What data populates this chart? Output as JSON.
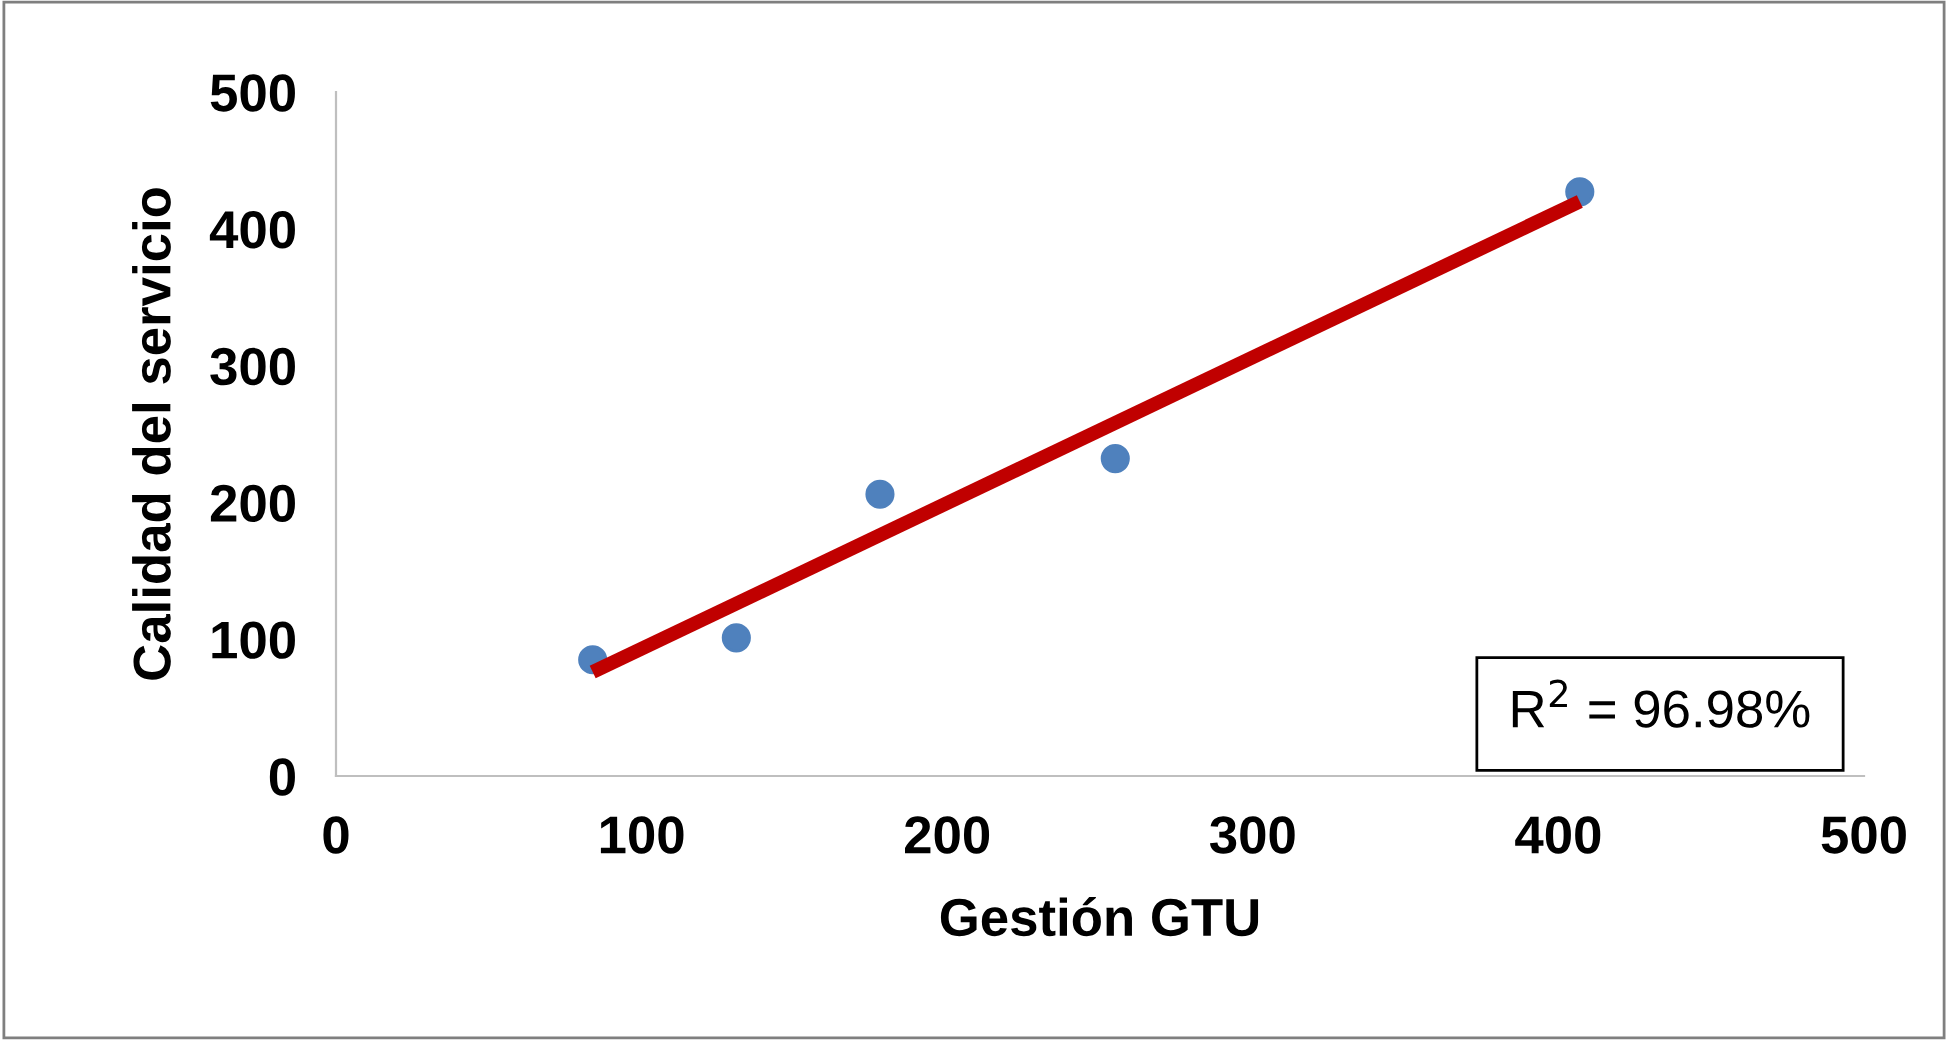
{
  "chart_data": {
    "type": "scatter",
    "xlabel": "Gestión GTU",
    "ylabel": "Calidad del servicio",
    "xlim": [
      0,
      500
    ],
    "ylim": [
      0,
      500
    ],
    "xticks": [
      0,
      100,
      200,
      300,
      400,
      500
    ],
    "yticks": [
      0,
      100,
      200,
      300,
      400,
      500
    ],
    "grid": false,
    "series": [
      {
        "marker": "circle",
        "color": "#4f81bd",
        "x": [
          84,
          131,
          178,
          255,
          407
        ],
        "values": [
          85,
          101,
          206,
          232,
          427
        ]
      },
      {
        "type": "line",
        "marker": "none",
        "color": "#c00000",
        "x": [
          84,
          407
        ],
        "values": [
          76,
          420
        ]
      }
    ],
    "annotations": [
      "R$^{2}$ = 96.98%"
    ]
  }
}
